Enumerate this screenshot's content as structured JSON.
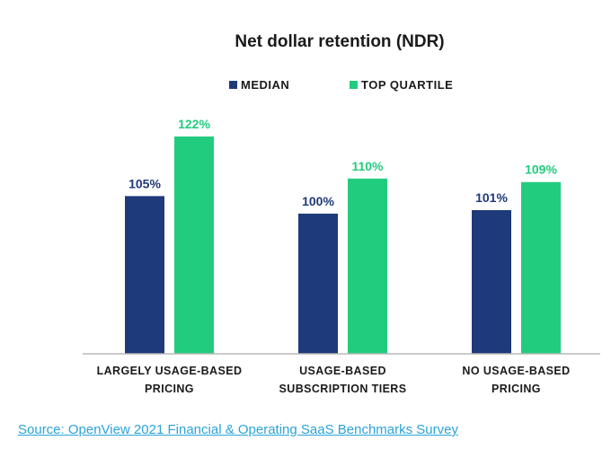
{
  "chart_data": {
    "type": "bar",
    "title": "Net dollar retention (NDR)",
    "categories": [
      [
        "LARGELY USAGE-BASED",
        "PRICING"
      ],
      [
        "USAGE-BASED",
        "SUBSCRIPTION TIERS"
      ],
      [
        "NO USAGE-BASED",
        "PRICING"
      ]
    ],
    "series": [
      {
        "name": "MEDIAN",
        "values": [
          105,
          100,
          101
        ],
        "labels": [
          "105%",
          "100%",
          "101%"
        ],
        "color": "#1f3a7a"
      },
      {
        "name": "TOP QUARTILE",
        "values": [
          122,
          110,
          109
        ],
        "labels": [
          "122%",
          "110%",
          "109%"
        ],
        "color": "#22cc7e"
      }
    ],
    "ylim": [
      60,
      122
    ],
    "grid": false,
    "legend_position": "top"
  },
  "source": {
    "text": "Source: OpenView 2021 Financial & Operating SaaS Benchmarks Survey"
  }
}
